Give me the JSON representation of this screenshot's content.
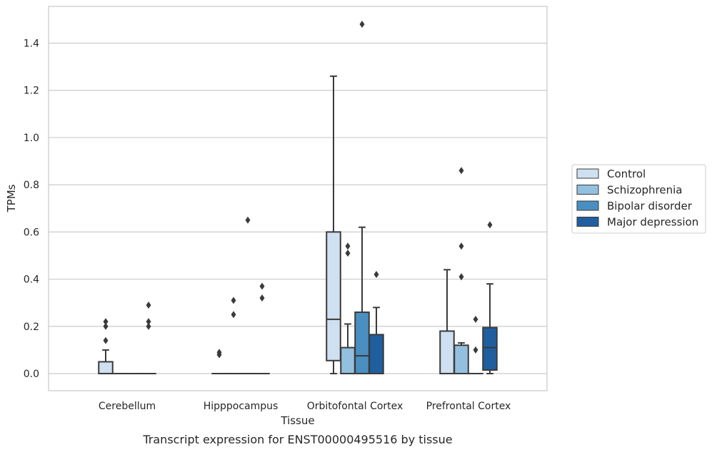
{
  "chart_data": {
    "type": "box",
    "xlabel": "Tissue",
    "ylabel": "TPMs",
    "caption": "Transcript expression for ENST00000495516 by tissue",
    "ylim": [
      -0.07,
      1.55
    ],
    "yticks": [
      "0.0",
      "0.2",
      "0.4",
      "0.6",
      "0.8",
      "1.0",
      "1.2",
      "1.4"
    ],
    "ytick_values": [
      0.0,
      0.2,
      0.4,
      0.6,
      0.8,
      1.0,
      1.2,
      1.4
    ],
    "grid": "horizontal",
    "legend_position": "right",
    "categories": [
      "Cerebellum",
      "Hipppocampus",
      "Orbitofontal Cortex",
      "Prefrontal Cortex"
    ],
    "series": [
      {
        "name": "Control",
        "color": "#cfe0f0",
        "boxes": [
          {
            "whisker_low": 0.0,
            "q1": 0.0,
            "median": 0.0,
            "q3": 0.05,
            "whisker_high": 0.1,
            "outliers": [
              0.14,
              0.2,
              0.22
            ]
          },
          {
            "whisker_low": 0.0,
            "q1": 0.0,
            "median": 0.0,
            "q3": 0.0,
            "whisker_high": 0.0,
            "outliers": [
              0.08,
              0.09
            ]
          },
          {
            "whisker_low": 0.0,
            "q1": 0.055,
            "median": 0.23,
            "q3": 0.6,
            "whisker_high": 1.26,
            "outliers": []
          },
          {
            "whisker_low": 0.0,
            "q1": 0.0,
            "median": 0.0,
            "q3": 0.18,
            "whisker_high": 0.44,
            "outliers": []
          }
        ]
      },
      {
        "name": "Schizophrenia",
        "color": "#94c0df",
        "boxes": [
          {
            "whisker_low": 0.0,
            "q1": 0.0,
            "median": 0.0,
            "q3": 0.0,
            "whisker_high": 0.0,
            "outliers": []
          },
          {
            "whisker_low": 0.0,
            "q1": 0.0,
            "median": 0.0,
            "q3": 0.0,
            "whisker_high": 0.0,
            "outliers": [
              0.25,
              0.31
            ]
          },
          {
            "whisker_low": 0.0,
            "q1": 0.0,
            "median": 0.0,
            "q3": 0.11,
            "whisker_high": 0.21,
            "outliers": [
              0.51,
              0.54
            ]
          },
          {
            "whisker_low": 0.0,
            "q1": 0.0,
            "median": 0.0,
            "q3": 0.12,
            "whisker_high": 0.13,
            "outliers": [
              0.41,
              0.54,
              0.86
            ]
          }
        ]
      },
      {
        "name": "Bipolar disorder",
        "color": "#4a8fc1",
        "boxes": [
          {
            "whisker_low": 0.0,
            "q1": 0.0,
            "median": 0.0,
            "q3": 0.0,
            "whisker_high": 0.0,
            "outliers": []
          },
          {
            "whisker_low": 0.0,
            "q1": 0.0,
            "median": 0.0,
            "q3": 0.0,
            "whisker_high": 0.0,
            "outliers": [
              0.65
            ]
          },
          {
            "whisker_low": 0.0,
            "q1": 0.0,
            "median": 0.075,
            "q3": 0.26,
            "whisker_high": 0.62,
            "outliers": [
              1.48
            ]
          },
          {
            "whisker_low": 0.0,
            "q1": 0.0,
            "median": 0.0,
            "q3": 0.0,
            "whisker_high": 0.0,
            "outliers": [
              0.1,
              0.23
            ]
          }
        ]
      },
      {
        "name": "Major depression",
        "color": "#1f5fa0",
        "boxes": [
          {
            "whisker_low": 0.0,
            "q1": 0.0,
            "median": 0.0,
            "q3": 0.0,
            "whisker_high": 0.0,
            "outliers": [
              0.2,
              0.22,
              0.29
            ]
          },
          {
            "whisker_low": 0.0,
            "q1": 0.0,
            "median": 0.0,
            "q3": 0.0,
            "whisker_high": 0.0,
            "outliers": [
              0.32,
              0.37
            ]
          },
          {
            "whisker_low": 0.0,
            "q1": 0.0,
            "median": 0.0,
            "q3": 0.165,
            "whisker_high": 0.28,
            "outliers": [
              0.42
            ]
          },
          {
            "whisker_low": 0.0,
            "q1": 0.015,
            "median": 0.11,
            "q3": 0.195,
            "whisker_high": 0.38,
            "outliers": [
              0.63
            ]
          }
        ]
      }
    ]
  }
}
